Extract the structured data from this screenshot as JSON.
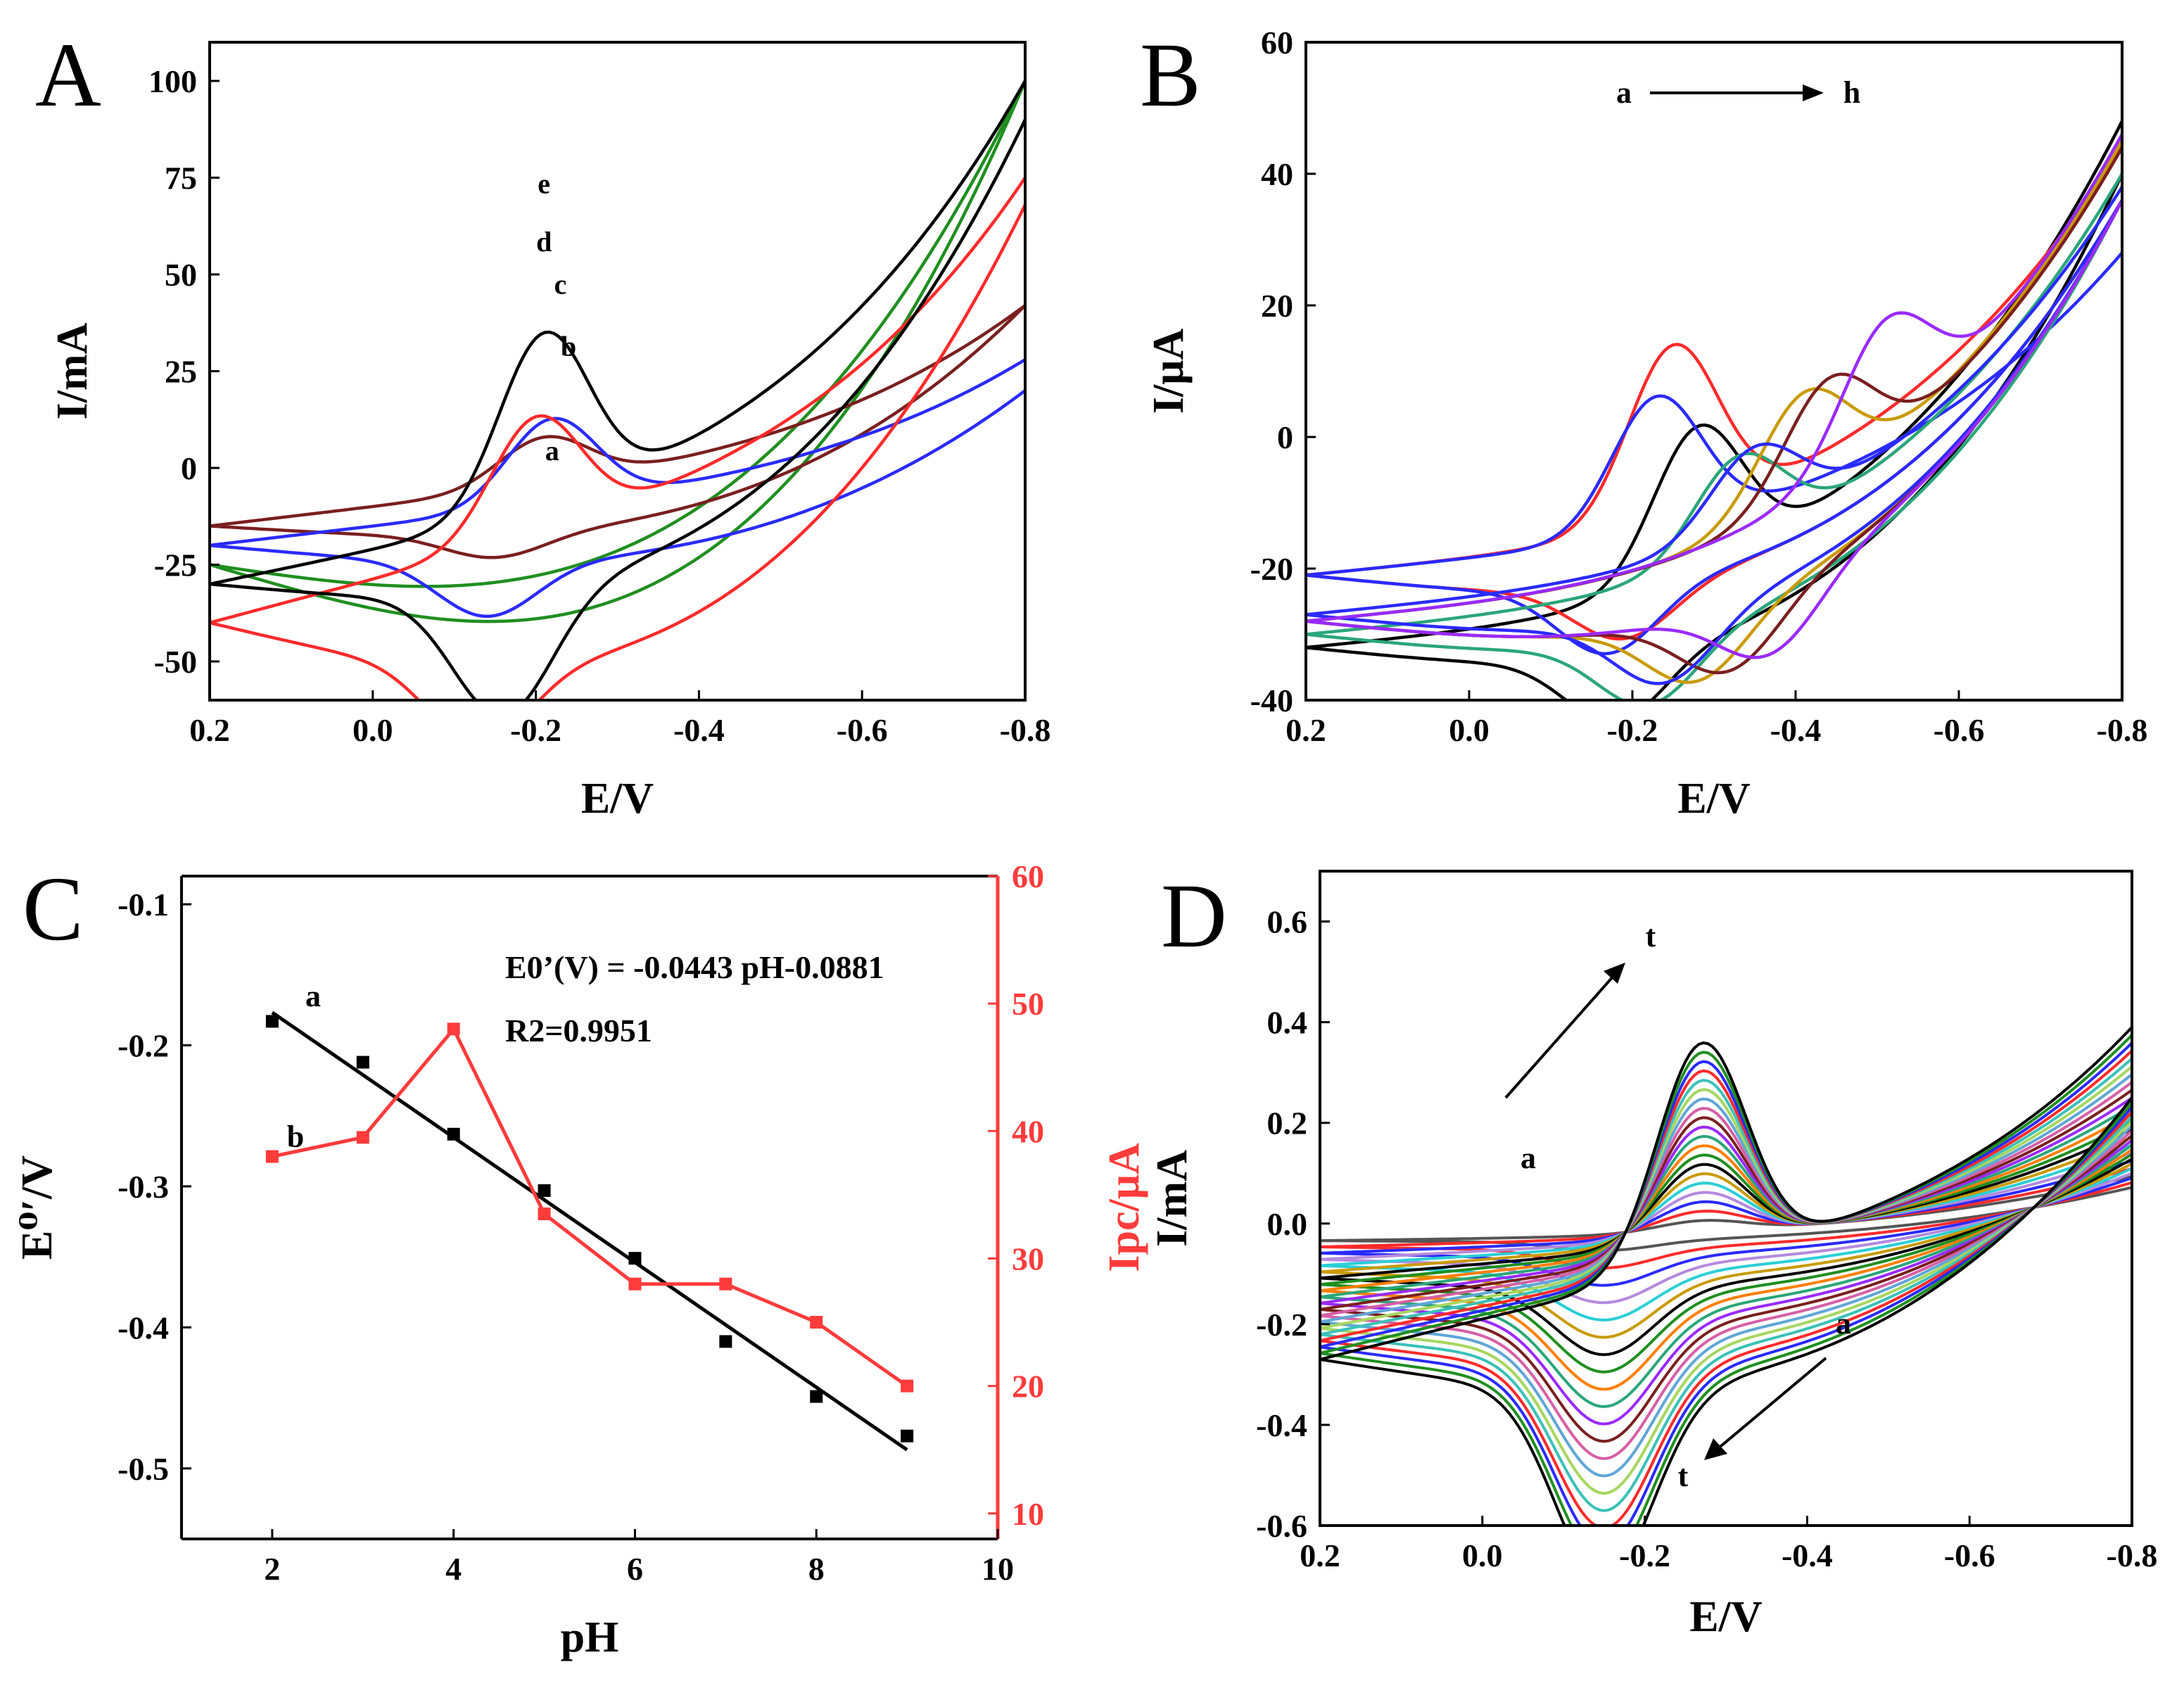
{
  "figure": {
    "panels": [
      "A",
      "B",
      "C",
      "D"
    ]
  },
  "colors": {
    "black": "#000000",
    "red": "#ff2a2a",
    "blue": "#2a2aff",
    "green": "#1f8f1f",
    "brown": "#7a1f1f",
    "teal": "#2aa67a",
    "gold": "#c99a00",
    "maroon": "#7a1f1f",
    "violet": "#9a2aff",
    "gray": "#555555"
  },
  "chart_data": [
    {
      "panel": "A",
      "type": "line",
      "title": "",
      "xlabel": "E/V",
      "ylabel": "I/mA",
      "xlim": [
        0.2,
        -0.8
      ],
      "ylim": [
        -60,
        110
      ],
      "xticks": [
        "0.2",
        "0.0",
        "-0.2",
        "-0.4",
        "-0.6",
        "-0.8"
      ],
      "xtick_values": [
        0.2,
        0.0,
        -0.2,
        -0.4,
        -0.6,
        -0.8
      ],
      "yticks": [
        "-50",
        "-25",
        "0",
        "25",
        "50",
        "75",
        "100"
      ],
      "ytick_values": [
        -50,
        -25,
        0,
        25,
        50,
        75,
        100
      ],
      "curve_labels": [
        {
          "text": "e",
          "x": -0.21,
          "y": 71
        },
        {
          "text": "d",
          "x": -0.21,
          "y": 56
        },
        {
          "text": "c",
          "x": -0.23,
          "y": 45
        },
        {
          "text": "b",
          "x": -0.24,
          "y": 29
        },
        {
          "text": "a",
          "x": -0.22,
          "y": 2
        }
      ],
      "series": [
        {
          "name": "a",
          "color": "#1f8f1f",
          "cv": {
            "x0": 0.2,
            "x1": -0.8,
            "ia0": -25,
            "ia1": 100,
            "ic0": -25,
            "ic1": 100,
            "pa": 0,
            "pc": 0,
            "ea": -0.2,
            "ec": -0.2,
            "bulgeA": -10,
            "bulgeC": -20,
            "expA": 0,
            "expC": 0
          }
        },
        {
          "name": "b",
          "color": "#7a1f1f",
          "cv": {
            "x0": 0.2,
            "x1": -0.8,
            "ia0": -15,
            "ia1": 42,
            "ic0": -15,
            "ic1": 42,
            "pa": 12,
            "pc": -6,
            "ea": -0.21,
            "ec": -0.15,
            "bulgeA": 8,
            "bulgeC": -4,
            "expA": 30,
            "expC": 20
          }
        },
        {
          "name": "c",
          "color": "#2a2aff",
          "cv": {
            "x0": 0.2,
            "x1": -0.8,
            "ia0": -20,
            "ia1": 28,
            "ic0": -20,
            "ic1": 20,
            "pa": 22,
            "pc": -14,
            "ea": -0.22,
            "ec": -0.14,
            "bulgeA": 8,
            "bulgeC": -6,
            "expA": 2,
            "expC": 4
          }
        },
        {
          "name": "d",
          "color": "#ff2a2a",
          "cv": {
            "x0": 0.2,
            "x1": -0.8,
            "ia0": -40,
            "ia1": 75,
            "ic0": -40,
            "ic1": 68,
            "pa": 30,
            "pc": -20,
            "ea": -0.2,
            "ec": -0.13,
            "bulgeA": 18,
            "bulgeC": -16,
            "expA": 14,
            "expC": 22
          }
        },
        {
          "name": "e",
          "color": "#000000",
          "cv": {
            "x0": 0.2,
            "x1": -0.8,
            "ia0": -30,
            "ia1": 100,
            "ic0": -30,
            "ic1": 90,
            "pa": 44,
            "pc": -32,
            "ea": -0.21,
            "ec": -0.16,
            "bulgeA": 14,
            "bulgeC": -6,
            "expA": 50,
            "expC": 55
          }
        }
      ]
    },
    {
      "panel": "B",
      "type": "line",
      "title": "",
      "xlabel": "E/V",
      "ylabel": "I/μA",
      "xlim": [
        0.2,
        -0.8
      ],
      "ylim": [
        -40,
        60
      ],
      "xticks": [
        "0.2",
        "0.0",
        "-0.2",
        "-0.4",
        "-0.6",
        "-0.8"
      ],
      "xtick_values": [
        0.2,
        0.0,
        -0.2,
        -0.4,
        -0.6,
        -0.8
      ],
      "yticks": [
        "-40",
        "-20",
        "0",
        "20",
        "40",
        "60"
      ],
      "ytick_values": [
        -40,
        -20,
        0,
        20,
        40,
        60
      ],
      "annotation": {
        "from": "a",
        "to": "h"
      },
      "series": [
        {
          "name": "a",
          "color": "#000000",
          "cv": {
            "x0": 0.2,
            "x1": -0.8,
            "ia0": -32,
            "ia1": 48,
            "ic0": -32,
            "ic1": 40,
            "pa": 22,
            "pc": -10,
            "ea": -0.28,
            "ec": -0.18,
            "bulgeA": 4,
            "bulgeC": -4,
            "expA": 16,
            "expC": 20
          }
        },
        {
          "name": "b",
          "color": "#ff2a2a",
          "cv": {
            "x0": 0.2,
            "x1": -0.8,
            "ia0": -21,
            "ia1": 44,
            "ic0": -21,
            "ic1": 36,
            "pa": 26,
            "pc": -8,
            "ea": -0.25,
            "ec": -0.19,
            "bulgeA": 4,
            "bulgeC": -4,
            "expA": 24,
            "expC": 12
          }
        },
        {
          "name": "c",
          "color": "#2a2aff",
          "cv": {
            "x0": 0.2,
            "x1": -0.8,
            "ia0": -21,
            "ia1": 28,
            "ic0": -21,
            "ic1": 36,
            "pa": 20,
            "pc": -10,
            "ea": -0.23,
            "ec": -0.17,
            "bulgeA": 4,
            "bulgeC": -4,
            "expA": 4,
            "expC": 10
          }
        },
        {
          "name": "d",
          "color": "#2aa67a",
          "cv": {
            "x0": 0.2,
            "x1": -0.8,
            "ia0": -30,
            "ia1": 40,
            "ic0": -30,
            "ic1": 36,
            "pa": 14,
            "pc": -10,
            "ea": -0.33,
            "ec": -0.22,
            "bulgeA": 4,
            "bulgeC": -4,
            "expA": 16,
            "expC": 10
          }
        },
        {
          "name": "e",
          "color": "#c99a00",
          "cv": {
            "x0": 0.2,
            "x1": -0.8,
            "ia0": -28,
            "ia1": 45,
            "ic0": -28,
            "ic1": 36,
            "pa": 16,
            "pc": -10,
            "ea": -0.41,
            "ec": -0.28,
            "bulgeA": 4,
            "bulgeC": -4,
            "expA": 14,
            "expC": 10
          }
        },
        {
          "name": "f",
          "color": "#7a1f1f",
          "cv": {
            "x0": 0.2,
            "x1": -0.8,
            "ia0": -28,
            "ia1": 44,
            "ic0": -28,
            "ic1": 36,
            "pa": 16,
            "pc": -10,
            "ea": -0.44,
            "ec": -0.32,
            "bulgeA": 4,
            "bulgeC": -4,
            "expA": 14,
            "expC": 10
          }
        },
        {
          "name": "g",
          "color": "#2a2aff",
          "cv": {
            "x0": 0.2,
            "x1": -0.8,
            "ia0": -27,
            "ia1": 38,
            "ic0": -27,
            "ic1": 36,
            "pa": 12,
            "pc": -10,
            "ea": -0.35,
            "ec": -0.24,
            "bulgeA": 4,
            "bulgeC": -4,
            "expA": 10,
            "expC": 10
          }
        },
        {
          "name": "h",
          "color": "#9a2aff",
          "cv": {
            "x0": 0.2,
            "x1": -0.8,
            "ia0": -28,
            "ia1": 46,
            "ic0": -28,
            "ic1": 36,
            "pa": 18,
            "pc": -10,
            "ea": -0.51,
            "ec": -0.37,
            "bulgeA": 4,
            "bulgeC": -4,
            "expA": 14,
            "expC": 10
          }
        }
      ]
    },
    {
      "panel": "C",
      "type": "scatter",
      "title": "",
      "xlabel": "pH",
      "ylabel": "E⁰′/V",
      "ylabel_right": "Ipc/μA",
      "xlim": [
        1,
        10
      ],
      "ylim": [
        -0.55,
        -0.08
      ],
      "ylim_right": [
        8,
        60
      ],
      "xticks": [
        "2",
        "4",
        "6",
        "8",
        "10"
      ],
      "xtick_values": [
        2,
        4,
        6,
        8,
        10
      ],
      "yticks": [
        "-0.5",
        "-0.4",
        "-0.3",
        "-0.2",
        "-0.1"
      ],
      "ytick_values": [
        -0.5,
        -0.4,
        -0.3,
        -0.2,
        -0.1
      ],
      "yticks_right": [
        "10",
        "20",
        "30",
        "40",
        "50",
        "60"
      ],
      "ytick_values_right": [
        10,
        20,
        30,
        40,
        50,
        60
      ],
      "equation": "E0’(V) = -0.0443 pH-0.0881",
      "r_squared": "R2=0.9951",
      "series_labels": [
        "a",
        "b"
      ],
      "series": [
        {
          "name": "a",
          "color": "#000000",
          "axis": "left",
          "x": [
            2,
            3,
            4,
            5,
            6,
            7,
            8,
            9
          ],
          "y": [
            -0.183,
            -0.212,
            -0.263,
            -0.303,
            -0.351,
            -0.41,
            -0.449,
            -0.477
          ],
          "fit": {
            "slope": -0.0443,
            "intercept": -0.0881,
            "x": [
              2,
              9
            ]
          }
        },
        {
          "name": "b",
          "color": "#ff3b3b",
          "axis": "right",
          "x": [
            2,
            3,
            4,
            5,
            6,
            7,
            8,
            9
          ],
          "y": [
            38,
            39.5,
            48,
            33.5,
            28,
            28,
            25,
            20
          ]
        }
      ]
    },
    {
      "panel": "D",
      "type": "line",
      "title": "",
      "xlabel": "E/V",
      "ylabel": "I/mA",
      "xlim": [
        0.2,
        -0.8
      ],
      "ylim": [
        -0.6,
        0.7
      ],
      "xticks": [
        "0.2",
        "0.0",
        "-0.2",
        "-0.4",
        "-0.6",
        "-0.8"
      ],
      "xtick_values": [
        0.2,
        0.0,
        -0.2,
        -0.4,
        -0.6,
        -0.8
      ],
      "yticks": [
        "-0.6",
        "-0.4",
        "-0.2",
        "0.0",
        "0.2",
        "0.4",
        "0.6"
      ],
      "ytick_values": [
        -0.6,
        -0.4,
        -0.2,
        0.0,
        0.2,
        0.4,
        0.6
      ],
      "annotation_top": {
        "from": "a",
        "to": "t"
      },
      "annotation_bottom": {
        "from": "a",
        "to": "t"
      },
      "family": {
        "count": 20,
        "color_cycle": [
          "#555555",
          "#ff2a2a",
          "#2a2aff",
          "#b48ade",
          "#2acfd6",
          "#c99a00",
          "#000000",
          "#1f8f1f",
          "#ff7f00",
          "#2aa67a",
          "#9a2aff",
          "#7a1f1f",
          "#d65fa6",
          "#5fa6d6",
          "#a6d65f",
          "#3ac1b8",
          "#ff2a2a",
          "#2a2aff",
          "#1f8f1f",
          "#000000"
        ],
        "last": {
          "ia0": -0.27,
          "ia1": 0.39,
          "ic0": -0.27,
          "ic1": 0.25,
          "pa": 0.44,
          "pc": -0.38,
          "ea": -0.27,
          "ec": -0.15,
          "bulgeA": 0.13,
          "bulgeC": -0.08,
          "expA": 0.22,
          "expC": 0.2
        }
      }
    }
  ]
}
